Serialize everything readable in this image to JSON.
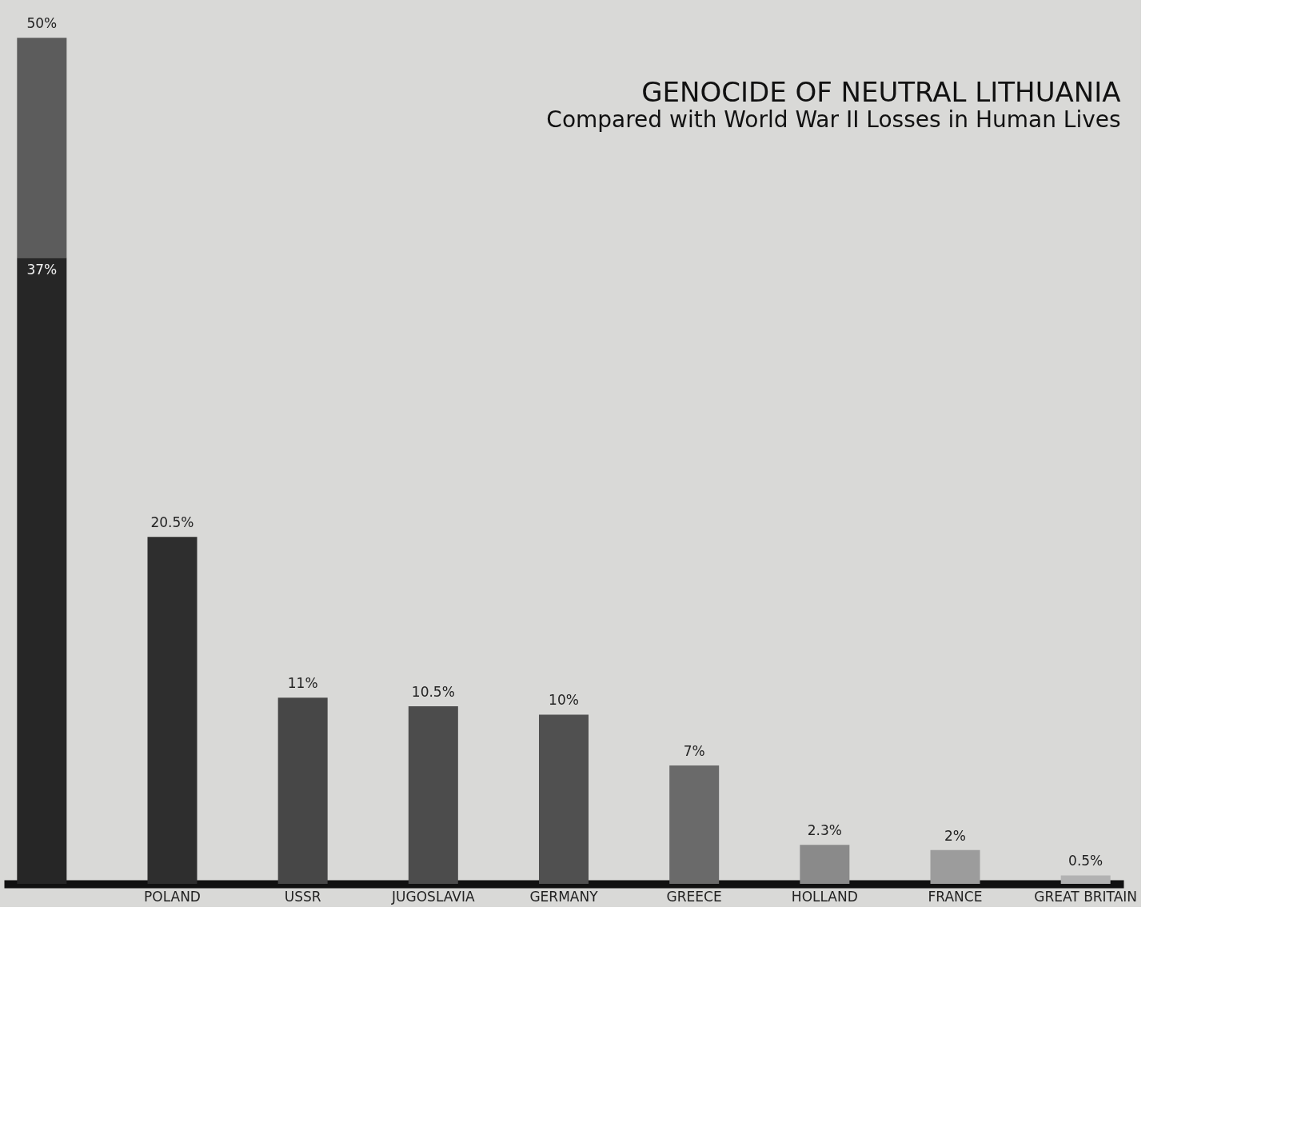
{
  "chart_data": {
    "type": "bar",
    "title": "GENOCIDE OF NEUTRAL LITHUANIA",
    "subtitle": "Compared with World War II Losses in Human Lives",
    "categories": [
      null,
      "POLAND",
      "USSR",
      "JUGOSLAVIA",
      "GERMANY",
      "GREECE",
      "HOLLAND",
      "FRANCE",
      "GREAT BRITAIN"
    ],
    "stacked": true,
    "series": [
      {
        "colors": [
          "#262626",
          "#2e2e2e",
          "#474747",
          "#4c4c4c",
          "#505050",
          "#6a6a6a",
          "#8a8a8a",
          "#9c9c9c",
          "#b2b2b2"
        ],
        "values": [
          37,
          20.5,
          11,
          10.5,
          10,
          7,
          2.3,
          2,
          0.5
        ],
        "value_labels": [
          "37%",
          "20.5%",
          "11%",
          "10.5%",
          "10%",
          "7%",
          "2.3%",
          "2%",
          "0.5%"
        ]
      },
      {
        "color": "#5c5c5c",
        "values": [
          13,
          null,
          null,
          null,
          null,
          null,
          null,
          null,
          null
        ]
      }
    ],
    "totals": [
      "50%",
      null,
      null,
      null,
      null,
      null,
      null,
      null,
      null
    ],
    "grid": false
  }
}
